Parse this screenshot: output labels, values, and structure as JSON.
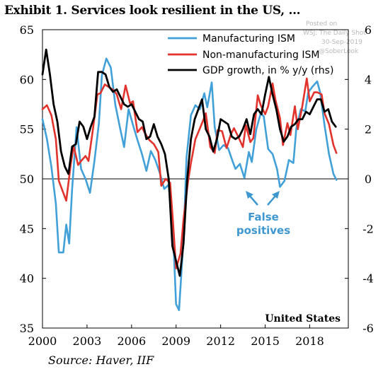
{
  "chart_data": {
    "type": "line",
    "title": "Exhibit 1. Services look resilient in the US, ...",
    "source": "Source: Haver, IIF",
    "region_label": "United States",
    "annotation": [
      "False",
      "positives"
    ],
    "watermark": [
      "Posted on",
      "WSJ: The Daily Shot",
      "30-Sep-2019",
      "@SoberLook"
    ],
    "legend_position": "top-right",
    "grid": false,
    "x_ticks": [
      "2000",
      "2003",
      "2006",
      "2009",
      "2012",
      "2015",
      "2018"
    ],
    "x_tick_values": [
      2000,
      2003,
      2006,
      2009,
      2012,
      2015,
      2018
    ],
    "xlim": [
      2000,
      2020.6
    ],
    "y_left_ticks": [
      "35",
      "40",
      "45",
      "50",
      "55",
      "60",
      "65"
    ],
    "ylim_left": [
      35,
      65
    ],
    "y_right_ticks": [
      "-6",
      "-4",
      "-2",
      "0",
      "2",
      "4",
      "6"
    ],
    "ylim_right": [
      -6,
      6
    ],
    "reference_line": 50,
    "colors": {
      "manufacturing": "#41a0d8",
      "non_manufacturing": "#e2322c",
      "gdp": "#000000",
      "annotation": "#3e98cf"
    },
    "series": [
      {
        "name": "Manufacturing ISM",
        "axis": "left",
        "points": [
          [
            2000.0,
            56.0
          ],
          [
            2000.3,
            54.0
          ],
          [
            2000.6,
            51.2
          ],
          [
            2000.9,
            47.5
          ],
          [
            2001.1,
            42.6
          ],
          [
            2001.4,
            42.6
          ],
          [
            2001.6,
            45.4
          ],
          [
            2001.8,
            43.5
          ],
          [
            2002.0,
            49.0
          ],
          [
            2002.3,
            55.2
          ],
          [
            2002.6,
            51.0
          ],
          [
            2002.9,
            50.0
          ],
          [
            2003.2,
            48.6
          ],
          [
            2003.5,
            51.8
          ],
          [
            2003.8,
            55.6
          ],
          [
            2004.0,
            60.4
          ],
          [
            2004.3,
            62.1
          ],
          [
            2004.6,
            61.2
          ],
          [
            2004.9,
            57.5
          ],
          [
            2005.2,
            55.3
          ],
          [
            2005.5,
            53.2
          ],
          [
            2005.8,
            57.0
          ],
          [
            2006.1,
            55.4
          ],
          [
            2006.4,
            53.9
          ],
          [
            2006.7,
            52.5
          ],
          [
            2007.0,
            50.8
          ],
          [
            2007.3,
            52.8
          ],
          [
            2007.6,
            51.9
          ],
          [
            2007.9,
            50.6
          ],
          [
            2008.2,
            49.0
          ],
          [
            2008.5,
            49.4
          ],
          [
            2008.8,
            44.5
          ],
          [
            2009.0,
            37.4
          ],
          [
            2009.2,
            36.8
          ],
          [
            2009.5,
            43.9
          ],
          [
            2009.7,
            52.1
          ],
          [
            2010.0,
            56.4
          ],
          [
            2010.3,
            57.4
          ],
          [
            2010.6,
            57.0
          ],
          [
            2010.9,
            58.6
          ],
          [
            2011.1,
            57.2
          ],
          [
            2011.4,
            59.7
          ],
          [
            2011.6,
            55.2
          ],
          [
            2011.9,
            52.9
          ],
          [
            2012.2,
            53.4
          ],
          [
            2012.5,
            53.1
          ],
          [
            2012.8,
            51.8
          ],
          [
            2013.0,
            51.0
          ],
          [
            2013.3,
            51.5
          ],
          [
            2013.6,
            50.1
          ],
          [
            2013.9,
            52.7
          ],
          [
            2014.1,
            51.7
          ],
          [
            2014.4,
            55.0
          ],
          [
            2014.7,
            56.6
          ],
          [
            2014.9,
            56.3
          ],
          [
            2015.2,
            53.0
          ],
          [
            2015.5,
            52.5
          ],
          [
            2015.8,
            51.0
          ],
          [
            2016.0,
            49.2
          ],
          [
            2016.3,
            49.8
          ],
          [
            2016.6,
            51.9
          ],
          [
            2016.9,
            51.6
          ],
          [
            2017.1,
            55.1
          ],
          [
            2017.4,
            57.0
          ],
          [
            2017.7,
            56.8
          ],
          [
            2017.9,
            58.7
          ],
          [
            2018.2,
            59.3
          ],
          [
            2018.5,
            59.8
          ],
          [
            2018.7,
            58.7
          ],
          [
            2019.0,
            55.4
          ],
          [
            2019.3,
            52.5
          ],
          [
            2019.6,
            50.5
          ],
          [
            2019.8,
            49.9
          ]
        ]
      },
      {
        "name": "Non-manufacturing ISM",
        "axis": "left",
        "points": [
          [
            2000.0,
            57.0
          ],
          [
            2000.3,
            57.4
          ],
          [
            2000.6,
            56.4
          ],
          [
            2000.9,
            54.0
          ],
          [
            2001.1,
            49.8
          ],
          [
            2001.4,
            48.6
          ],
          [
            2001.6,
            47.8
          ],
          [
            2001.9,
            51.4
          ],
          [
            2002.1,
            53.3
          ],
          [
            2002.4,
            51.4
          ],
          [
            2002.6,
            51.8
          ],
          [
            2002.9,
            52.3
          ],
          [
            2003.1,
            51.8
          ],
          [
            2003.4,
            55.0
          ],
          [
            2003.7,
            58.5
          ],
          [
            2003.9,
            58.6
          ],
          [
            2004.2,
            59.5
          ],
          [
            2004.5,
            59.2
          ],
          [
            2004.8,
            58.9
          ],
          [
            2005.0,
            58.5
          ],
          [
            2005.3,
            57.0
          ],
          [
            2005.6,
            59.4
          ],
          [
            2005.9,
            57.6
          ],
          [
            2006.1,
            57.8
          ],
          [
            2006.4,
            54.7
          ],
          [
            2006.7,
            55.2
          ],
          [
            2006.9,
            54.6
          ],
          [
            2007.2,
            53.9
          ],
          [
            2007.5,
            53.5
          ],
          [
            2007.8,
            52.7
          ],
          [
            2008.0,
            49.3
          ],
          [
            2008.3,
            50.0
          ],
          [
            2008.6,
            49.6
          ],
          [
            2008.8,
            45.5
          ],
          [
            2009.0,
            41.0
          ],
          [
            2009.3,
            42.5
          ],
          [
            2009.5,
            45.9
          ],
          [
            2009.8,
            49.7
          ],
          [
            2010.0,
            51.6
          ],
          [
            2010.3,
            54.0
          ],
          [
            2010.5,
            54.7
          ],
          [
            2010.8,
            55.8
          ],
          [
            2011.0,
            56.6
          ],
          [
            2011.3,
            53.2
          ],
          [
            2011.6,
            52.6
          ],
          [
            2011.8,
            54.9
          ],
          [
            2012.1,
            54.8
          ],
          [
            2012.4,
            53.1
          ],
          [
            2012.7,
            54.5
          ],
          [
            2012.9,
            55.1
          ],
          [
            2013.2,
            54.2
          ],
          [
            2013.5,
            53.2
          ],
          [
            2013.7,
            55.4
          ],
          [
            2014.0,
            53.7
          ],
          [
            2014.2,
            54.1
          ],
          [
            2014.5,
            58.4
          ],
          [
            2014.7,
            57.4
          ],
          [
            2015.0,
            56.5
          ],
          [
            2015.2,
            57.3
          ],
          [
            2015.5,
            59.6
          ],
          [
            2015.7,
            57.9
          ],
          [
            2016.0,
            56.1
          ],
          [
            2016.2,
            53.4
          ],
          [
            2016.5,
            55.6
          ],
          [
            2016.7,
            54.4
          ],
          [
            2017.0,
            57.3
          ],
          [
            2017.2,
            55.0
          ],
          [
            2017.5,
            57.3
          ],
          [
            2017.8,
            60.1
          ],
          [
            2018.0,
            57.8
          ],
          [
            2018.3,
            58.7
          ],
          [
            2018.5,
            58.7
          ],
          [
            2018.8,
            58.5
          ],
          [
            2019.0,
            56.6
          ],
          [
            2019.3,
            55.5
          ],
          [
            2019.6,
            53.4
          ],
          [
            2019.8,
            52.6
          ]
        ]
      },
      {
        "name": "GDP growth, in % y/y (rhs)",
        "axis": "right",
        "points": [
          [
            2000.0,
            4.2
          ],
          [
            2000.25,
            5.2
          ],
          [
            2000.5,
            4.2
          ],
          [
            2000.75,
            3.0
          ],
          [
            2001.0,
            2.3
          ],
          [
            2001.25,
            1.1
          ],
          [
            2001.5,
            0.5
          ],
          [
            2001.75,
            0.2
          ],
          [
            2002.0,
            1.3
          ],
          [
            2002.25,
            1.4
          ],
          [
            2002.5,
            2.3
          ],
          [
            2002.75,
            2.1
          ],
          [
            2003.0,
            1.6
          ],
          [
            2003.25,
            2.1
          ],
          [
            2003.5,
            2.5
          ],
          [
            2003.75,
            4.3
          ],
          [
            2004.0,
            4.3
          ],
          [
            2004.25,
            4.2
          ],
          [
            2004.5,
            3.7
          ],
          [
            2004.75,
            3.5
          ],
          [
            2005.0,
            3.6
          ],
          [
            2005.25,
            3.3
          ],
          [
            2005.5,
            3.0
          ],
          [
            2005.75,
            2.9
          ],
          [
            2006.0,
            3.0
          ],
          [
            2006.25,
            2.7
          ],
          [
            2006.5,
            2.4
          ],
          [
            2006.75,
            2.3
          ],
          [
            2007.0,
            1.6
          ],
          [
            2007.25,
            1.7
          ],
          [
            2007.5,
            2.2
          ],
          [
            2007.75,
            1.7
          ],
          [
            2008.0,
            1.4
          ],
          [
            2008.25,
            1.0
          ],
          [
            2008.5,
            0.0
          ],
          [
            2008.75,
            -2.7
          ],
          [
            2009.0,
            -3.3
          ],
          [
            2009.25,
            -3.9
          ],
          [
            2009.5,
            -2.6
          ],
          [
            2009.75,
            0.0
          ],
          [
            2010.0,
            1.6
          ],
          [
            2010.25,
            2.4
          ],
          [
            2010.5,
            2.8
          ],
          [
            2010.75,
            3.2
          ],
          [
            2011.0,
            2.0
          ],
          [
            2011.25,
            1.7
          ],
          [
            2011.5,
            1.1
          ],
          [
            2011.75,
            1.6
          ],
          [
            2012.0,
            2.4
          ],
          [
            2012.25,
            2.3
          ],
          [
            2012.5,
            2.2
          ],
          [
            2012.75,
            1.7
          ],
          [
            2013.0,
            1.6
          ],
          [
            2013.25,
            1.7
          ],
          [
            2013.5,
            2.0
          ],
          [
            2013.75,
            2.4
          ],
          [
            2014.0,
            1.8
          ],
          [
            2014.25,
            2.6
          ],
          [
            2014.5,
            2.8
          ],
          [
            2014.75,
            2.6
          ],
          [
            2015.0,
            3.4
          ],
          [
            2015.25,
            4.1
          ],
          [
            2015.5,
            3.4
          ],
          [
            2015.75,
            2.8
          ],
          [
            2016.0,
            2.0
          ],
          [
            2016.25,
            1.5
          ],
          [
            2016.5,
            1.7
          ],
          [
            2016.75,
            2.1
          ],
          [
            2017.0,
            2.2
          ],
          [
            2017.25,
            2.4
          ],
          [
            2017.5,
            2.4
          ],
          [
            2017.75,
            2.7
          ],
          [
            2018.0,
            2.6
          ],
          [
            2018.25,
            2.9
          ],
          [
            2018.5,
            3.2
          ],
          [
            2018.75,
            3.2
          ],
          [
            2019.0,
            2.7
          ],
          [
            2019.25,
            2.8
          ],
          [
            2019.5,
            2.3
          ],
          [
            2019.75,
            2.1
          ]
        ]
      }
    ]
  }
}
